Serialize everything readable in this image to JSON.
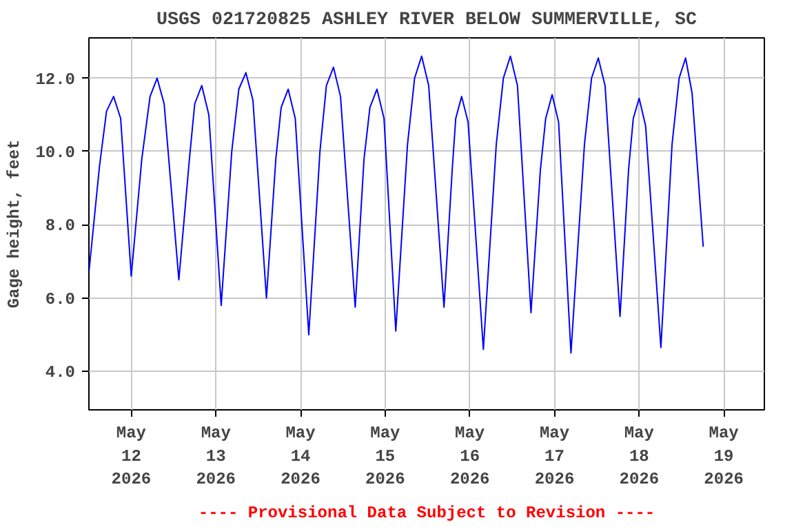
{
  "chart_data": {
    "type": "line",
    "title": "USGS 021720825 ASHLEY RIVER BELOW SUMMERVILLE, SC",
    "ylabel": "Gage height, feet",
    "annotations": [
      "---- Provisional Data Subject to Revision ----"
    ],
    "xlim": [
      "2026-05-11T12:00",
      "2026-05-19T11:30"
    ],
    "ylim": [
      2.95,
      13.1
    ],
    "xticks": [
      {
        "value": "2026-05-12",
        "label": "May\n12\n2026"
      },
      {
        "value": "2026-05-13",
        "label": "May\n13\n2026"
      },
      {
        "value": "2026-05-14",
        "label": "May\n14\n2026"
      },
      {
        "value": "2026-05-15",
        "label": "May\n15\n2026"
      },
      {
        "value": "2026-05-16",
        "label": "May\n16\n2026"
      },
      {
        "value": "2026-05-17",
        "label": "May\n17\n2026"
      },
      {
        "value": "2026-05-18",
        "label": "May\n18\n2026"
      },
      {
        "value": "2026-05-19",
        "label": "May\n19\n2026"
      }
    ],
    "yticks": [
      {
        "value": 4,
        "label": "4.0"
      },
      {
        "value": 6,
        "label": "6.0"
      },
      {
        "value": 8,
        "label": "8.0"
      },
      {
        "value": 10,
        "label": "10.0"
      },
      {
        "value": 12,
        "label": "12.0"
      }
    ],
    "grid": true,
    "marker": "none",
    "line_style": "solid",
    "series": [
      {
        "color": "#0000ff",
        "x": [
          "2026-05-11T12:00",
          "2026-05-11T15:00",
          "2026-05-11T17:00",
          "2026-05-11T19:00",
          "2026-05-11T21:00",
          "2026-05-12T00:00",
          "2026-05-12T03:00",
          "2026-05-12T05:20",
          "2026-05-12T07:20",
          "2026-05-12T09:20",
          "2026-05-12T13:30",
          "2026-05-12T16:30",
          "2026-05-12T18:00",
          "2026-05-12T20:00",
          "2026-05-12T22:00",
          "2026-05-13T01:30",
          "2026-05-13T04:30",
          "2026-05-13T06:30",
          "2026-05-13T08:30",
          "2026-05-13T10:30",
          "2026-05-13T14:20",
          "2026-05-13T17:00",
          "2026-05-13T18:30",
          "2026-05-13T20:30",
          "2026-05-13T22:30",
          "2026-05-14T02:20",
          "2026-05-14T05:30",
          "2026-05-14T07:20",
          "2026-05-14T09:20",
          "2026-05-14T11:20",
          "2026-05-14T15:30",
          "2026-05-14T18:00",
          "2026-05-14T19:40",
          "2026-05-14T21:40",
          "2026-05-14T23:40",
          "2026-05-15T03:00",
          "2026-05-15T06:20",
          "2026-05-15T08:20",
          "2026-05-15T10:20",
          "2026-05-15T12:20",
          "2026-05-15T16:40",
          "2026-05-15T19:00",
          "2026-05-15T20:00",
          "2026-05-15T21:40",
          "2026-05-15T23:30",
          "2026-05-16T03:50",
          "2026-05-16T07:30",
          "2026-05-16T09:30",
          "2026-05-16T11:30",
          "2026-05-16T13:30",
          "2026-05-16T17:20",
          "2026-05-16T20:00",
          "2026-05-16T21:30",
          "2026-05-16T23:20",
          "2026-05-17T01:10",
          "2026-05-17T04:40",
          "2026-05-17T08:30",
          "2026-05-17T10:30",
          "2026-05-17T12:25",
          "2026-05-17T14:20",
          "2026-05-17T18:35",
          "2026-05-17T21:00",
          "2026-05-17T22:20",
          "2026-05-18T00:00",
          "2026-05-18T01:50",
          "2026-05-18T06:10",
          "2026-05-18T09:20",
          "2026-05-18T11:20",
          "2026-05-18T13:10",
          "2026-05-18T15:00",
          "2026-05-18T18:10"
        ],
        "values": [
          6.7,
          9.6,
          11.1,
          11.5,
          10.9,
          6.6,
          9.8,
          11.5,
          12.0,
          11.3,
          6.5,
          9.8,
          11.3,
          11.8,
          11.0,
          5.8,
          10.0,
          11.7,
          12.15,
          11.4,
          6.0,
          9.8,
          11.2,
          11.7,
          10.9,
          5.0,
          10.0,
          11.8,
          12.3,
          11.5,
          5.75,
          9.8,
          11.2,
          11.7,
          10.9,
          5.1,
          10.2,
          12.0,
          12.6,
          11.8,
          5.75,
          9.5,
          10.9,
          11.5,
          10.8,
          4.6,
          10.2,
          12.0,
          12.6,
          11.8,
          5.6,
          9.5,
          10.9,
          11.55,
          10.8,
          4.5,
          10.2,
          12.0,
          12.55,
          11.8,
          5.5,
          9.5,
          10.9,
          11.45,
          10.7,
          4.65,
          10.2,
          12.0,
          12.55,
          11.6,
          7.4
        ]
      }
    ]
  }
}
